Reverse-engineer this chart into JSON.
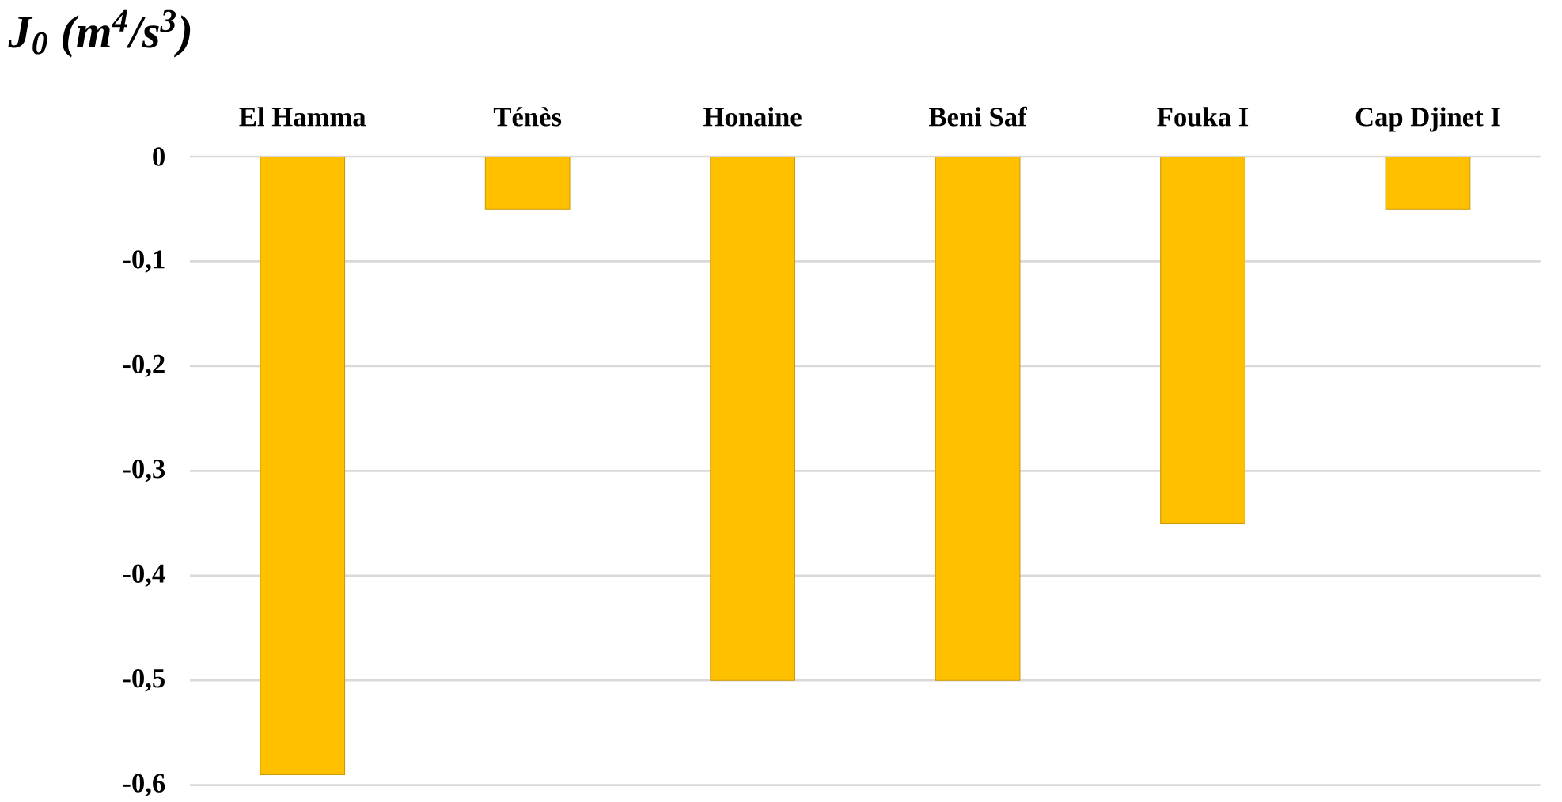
{
  "chart_data": {
    "type": "bar",
    "title": "J$_{0}$ (m$^{4}$/s$^{3}$)",
    "categories": [
      "El Hamma",
      "Ténès",
      "Honaine",
      "Beni Saf",
      "Fouka I",
      "Cap Djinet I"
    ],
    "values": [
      -0.59,
      -0.05,
      -0.5,
      -0.5,
      -0.35,
      -0.05
    ],
    "color": "#ffc000",
    "ylim": [
      -0.6,
      0
    ],
    "yticks": [
      {
        "value": 0,
        "label": "0"
      },
      {
        "value": -0.1,
        "label": "-0,1"
      },
      {
        "value": -0.2,
        "label": "-0,2"
      },
      {
        "value": -0.3,
        "label": "-0,3"
      },
      {
        "value": -0.4,
        "label": "-0,4"
      },
      {
        "value": -0.5,
        "label": "-0,5"
      },
      {
        "value": -0.6,
        "label": "-0,6"
      }
    ],
    "grid": "y"
  }
}
